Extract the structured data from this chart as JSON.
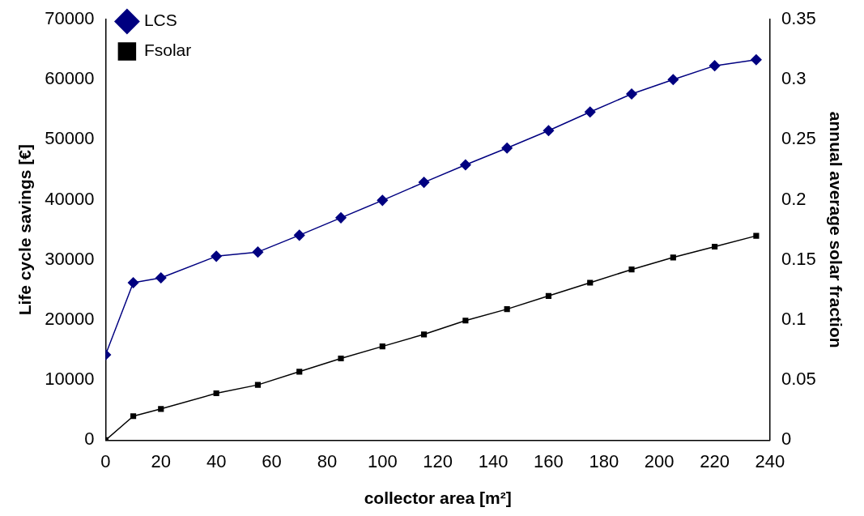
{
  "chart_data": {
    "type": "line",
    "xlabel": "collector area [m²]",
    "ylabel": "Life cycle savings [€]",
    "y2label": "annual average solar fraction",
    "x": [
      0,
      10,
      20,
      40,
      55,
      70,
      85,
      100,
      115,
      130,
      145,
      160,
      175,
      190,
      205,
      220,
      235
    ],
    "series": [
      {
        "name": "LCS",
        "color": "#000080",
        "marker": "diamond",
        "values": [
          14200,
          26200,
          27000,
          30600,
          31300,
          34100,
          37000,
          39900,
          42900,
          45800,
          48600,
          51500,
          54600,
          57600,
          60000,
          62300,
          63300
        ]
      },
      {
        "name": "Fsolar",
        "color": "#000000",
        "marker": "square",
        "axis": "y2",
        "values": [
          0,
          0.02,
          0.026,
          0.039,
          0.046,
          0.057,
          0.068,
          0.078,
          0.088,
          0.0995,
          0.109,
          0.12,
          0.131,
          0.142,
          0.152,
          0.161,
          0.17
        ]
      }
    ],
    "xlim": [
      0,
      240
    ],
    "xticks": [
      0,
      20,
      40,
      60,
      80,
      100,
      120,
      140,
      160,
      180,
      200,
      220,
      240
    ],
    "ylim": [
      0,
      70000
    ],
    "yticks": [
      0,
      10000,
      20000,
      30000,
      40000,
      50000,
      60000,
      70000
    ],
    "y2lim": [
      0,
      0.35
    ],
    "y2ticks": [
      0,
      0.05,
      0.1,
      0.15,
      0.2,
      0.25,
      0.3,
      0.35
    ],
    "grid": false,
    "legend": "top left",
    "line_style": "solid"
  }
}
